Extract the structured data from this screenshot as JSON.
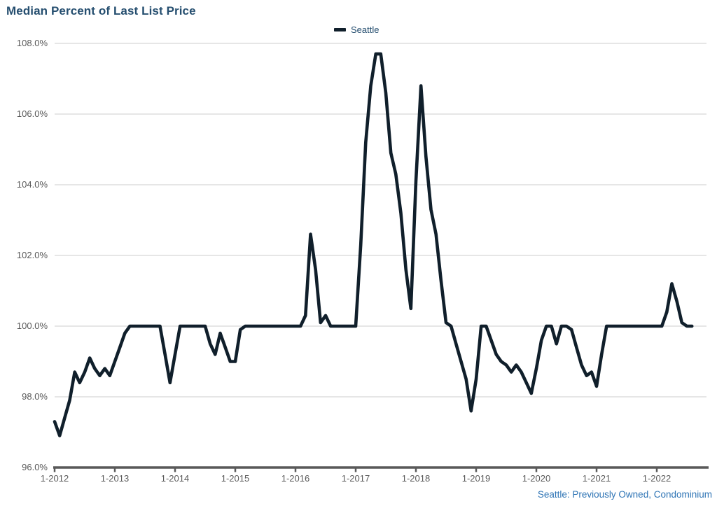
{
  "header": {
    "title": "Median Percent of Last List Price"
  },
  "legend": {
    "series_label": "Seattle"
  },
  "footer": {
    "caption": "Seattle: Previously Owned, Condominium"
  },
  "chart_data": {
    "type": "line",
    "title": "Median Percent of Last List Price",
    "xlabel": "",
    "ylabel": "",
    "ylim": [
      96,
      108
    ],
    "grid": "horizontal",
    "legend_position": "top-center",
    "line_color": "#101f2b",
    "gridline_color": "#d6d6d6",
    "axis_color": "#595959",
    "label_color": "#595959",
    "x_start_month": "1-2012",
    "x_end_month": "8-2022",
    "x_tick_labels": [
      "1-2012",
      "1-2013",
      "1-2014",
      "1-2015",
      "1-2016",
      "1-2017",
      "1-2018",
      "1-2019",
      "1-2020",
      "1-2021",
      "1-2022"
    ],
    "y_ticks": [
      {
        "value": 108,
        "label": "108.0%"
      },
      {
        "value": 106,
        "label": "106.0%"
      },
      {
        "value": 104,
        "label": "104.0%"
      },
      {
        "value": 102,
        "label": "102.0%"
      },
      {
        "value": 100,
        "label": "100.0%"
      },
      {
        "value": 98,
        "label": "98.0%"
      },
      {
        "value": 96,
        "label": "96.0%"
      }
    ],
    "series": [
      {
        "name": "Seattle",
        "frequency": "monthly",
        "values": [
          97.3,
          96.9,
          97.4,
          97.9,
          98.7,
          98.4,
          98.7,
          99.1,
          98.8,
          98.6,
          98.8,
          98.6,
          99.0,
          99.4,
          99.8,
          100.0,
          100.0,
          100.0,
          100.0,
          100.0,
          100.0,
          100.0,
          99.2,
          98.4,
          99.2,
          100.0,
          100.0,
          100.0,
          100.0,
          100.0,
          100.0,
          99.5,
          99.2,
          99.8,
          99.4,
          99.0,
          99.0,
          99.9,
          100.0,
          100.0,
          100.0,
          100.0,
          100.0,
          100.0,
          100.0,
          100.0,
          100.0,
          100.0,
          100.0,
          100.0,
          100.3,
          102.6,
          101.6,
          100.1,
          100.3,
          100.0,
          100.0,
          100.0,
          100.0,
          100.0,
          100.0,
          102.3,
          105.2,
          106.8,
          107.7,
          107.7,
          106.6,
          104.9,
          104.3,
          103.2,
          101.6,
          100.5,
          104.1,
          106.8,
          104.8,
          103.3,
          102.6,
          101.3,
          100.1,
          100.0,
          99.5,
          99.0,
          98.5,
          97.6,
          98.5,
          100.0,
          100.0,
          99.6,
          99.2,
          99.0,
          98.9,
          98.7,
          98.9,
          98.7,
          98.4,
          98.1,
          98.8,
          99.6,
          100.0,
          100.0,
          99.5,
          100.0,
          100.0,
          99.9,
          99.4,
          98.9,
          98.6,
          98.7,
          98.3,
          99.2,
          100.0,
          100.0,
          100.0,
          100.0,
          100.0,
          100.0,
          100.0,
          100.0,
          100.0,
          100.0,
          100.0,
          100.0,
          100.4,
          101.2,
          100.7,
          100.1,
          100.0,
          100.0
        ]
      }
    ]
  }
}
